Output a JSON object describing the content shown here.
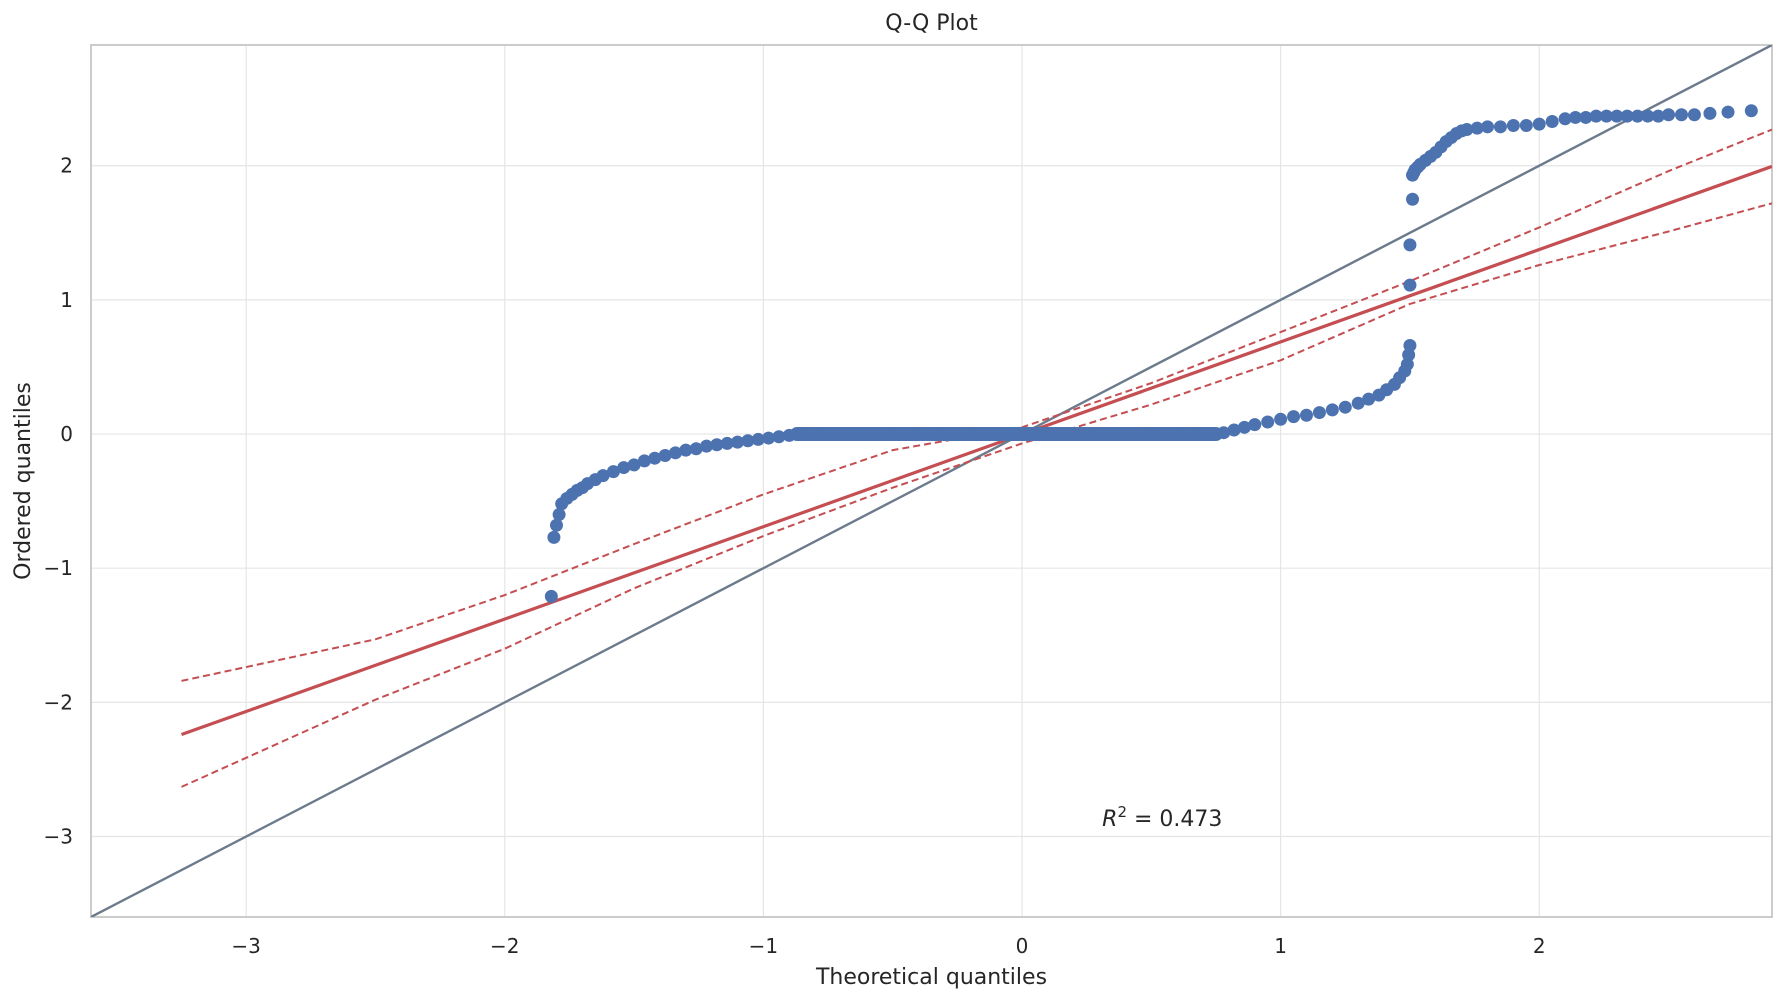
{
  "chart_data": {
    "type": "scatter",
    "title": "Q-Q Plot",
    "xlabel": "Theoretical quantiles",
    "ylabel": "Ordered quantiles",
    "xlim": [
      -3.6,
      2.9
    ],
    "ylim": [
      -3.6,
      2.9
    ],
    "grid": true,
    "x_ticks": [
      -3,
      -2,
      -1,
      0,
      1,
      2
    ],
    "x_tick_labels": [
      "−3",
      "−2",
      "−1",
      "0",
      "1",
      "2"
    ],
    "y_ticks": [
      -3,
      -2,
      -1,
      0,
      1,
      2
    ],
    "y_tick_labels": [
      "−3",
      "−2",
      "−1",
      "0",
      "1",
      "2"
    ],
    "annotation": {
      "text": "R",
      "superscript": "2",
      "rest": " = 0.473"
    },
    "colors": {
      "points": "#4c72b0",
      "fit": "#c44e52",
      "reference": "#6b7b8c",
      "grid": "#e5e5e5",
      "frame": "#cccccc"
    },
    "series": [
      {
        "kind": "points",
        "x": [
          -1.82,
          -1.81,
          -1.8,
          -1.79,
          -1.78,
          -1.76,
          -1.74,
          -1.72,
          -1.7,
          -1.68,
          -1.65,
          -1.62,
          -1.58,
          -1.54,
          -1.5,
          -1.46,
          -1.42,
          -1.38,
          -1.34,
          -1.3,
          -1.26,
          -1.22,
          -1.18,
          -1.14,
          -1.1,
          -1.06,
          -1.02,
          -0.98,
          -0.94,
          -0.9,
          -0.87,
          -0.8,
          -0.7,
          -0.6,
          -0.5,
          -0.4,
          -0.3,
          -0.2,
          -0.1,
          0.0,
          0.1,
          0.2,
          0.3,
          0.4,
          0.5,
          0.6,
          0.7,
          0.75,
          0.78,
          0.82,
          0.86,
          0.9,
          0.95,
          1.0,
          1.05,
          1.1,
          1.15,
          1.2,
          1.25,
          1.3,
          1.34,
          1.38,
          1.41,
          1.44,
          1.46,
          1.48,
          1.49,
          1.495,
          1.5,
          1.5,
          1.5,
          1.51,
          1.51,
          1.515,
          1.52,
          1.53,
          1.54,
          1.56,
          1.58,
          1.6,
          1.62,
          1.64,
          1.66,
          1.68,
          1.7,
          1.72,
          1.76,
          1.8,
          1.85,
          1.9,
          1.95,
          2.0,
          2.05,
          2.1,
          2.14,
          2.18,
          2.22,
          2.26,
          2.3,
          2.34,
          2.38,
          2.42,
          2.46,
          2.5,
          2.55,
          2.6,
          2.66,
          2.73,
          2.82
        ],
        "y": [
          -1.21,
          -0.77,
          -0.68,
          -0.6,
          -0.52,
          -0.48,
          -0.45,
          -0.42,
          -0.4,
          -0.37,
          -0.34,
          -0.31,
          -0.28,
          -0.25,
          -0.23,
          -0.2,
          -0.18,
          -0.16,
          -0.14,
          -0.12,
          -0.11,
          -0.09,
          -0.08,
          -0.07,
          -0.06,
          -0.05,
          -0.04,
          -0.03,
          -0.02,
          -0.01,
          0.0,
          0.0,
          0.0,
          0.0,
          0.0,
          0.0,
          0.0,
          0.0,
          0.0,
          0.0,
          0.0,
          0.0,
          0.0,
          0.0,
          0.0,
          0.0,
          0.0,
          0.0,
          0.01,
          0.03,
          0.05,
          0.07,
          0.09,
          0.11,
          0.13,
          0.14,
          0.16,
          0.18,
          0.2,
          0.23,
          0.26,
          0.29,
          0.33,
          0.37,
          0.42,
          0.47,
          0.52,
          0.59,
          0.66,
          1.11,
          1.41,
          1.75,
          1.93,
          1.95,
          1.97,
          1.99,
          2.01,
          2.04,
          2.07,
          2.1,
          2.14,
          2.18,
          2.21,
          2.24,
          2.26,
          2.27,
          2.28,
          2.29,
          2.29,
          2.3,
          2.3,
          2.31,
          2.33,
          2.35,
          2.36,
          2.36,
          2.37,
          2.37,
          2.37,
          2.37,
          2.37,
          2.37,
          2.37,
          2.38,
          2.38,
          2.38,
          2.39,
          2.4,
          2.41
        ]
      },
      {
        "kind": "line",
        "role": "fit",
        "x": [
          -3.25,
          2.9
        ],
        "y": [
          -2.24,
          1.995
        ]
      },
      {
        "kind": "line",
        "role": "reference",
        "x": [
          -3.6,
          2.9
        ],
        "y": [
          -3.6,
          2.9
        ]
      },
      {
        "kind": "dashed",
        "role": "upper-band",
        "x": [
          -3.25,
          -2.5,
          -2.0,
          -1.5,
          -1.0,
          -0.5,
          0.0,
          0.5,
          1.0,
          1.5,
          2.0,
          2.5,
          2.9
        ],
        "y": [
          -1.84,
          -1.53,
          -1.2,
          -0.82,
          -0.45,
          -0.12,
          0.05,
          0.38,
          0.76,
          1.14,
          1.54,
          1.96,
          2.27
        ]
      },
      {
        "kind": "dashed",
        "role": "lower-band",
        "x": [
          -3.25,
          -2.5,
          -2.0,
          -1.5,
          -1.0,
          -0.5,
          0.0,
          0.5,
          1.0,
          1.5,
          2.0,
          2.5,
          2.9
        ],
        "y": [
          -2.63,
          -1.98,
          -1.6,
          -1.15,
          -0.76,
          -0.4,
          -0.07,
          0.22,
          0.55,
          0.97,
          1.26,
          1.51,
          1.72
        ]
      }
    ]
  }
}
